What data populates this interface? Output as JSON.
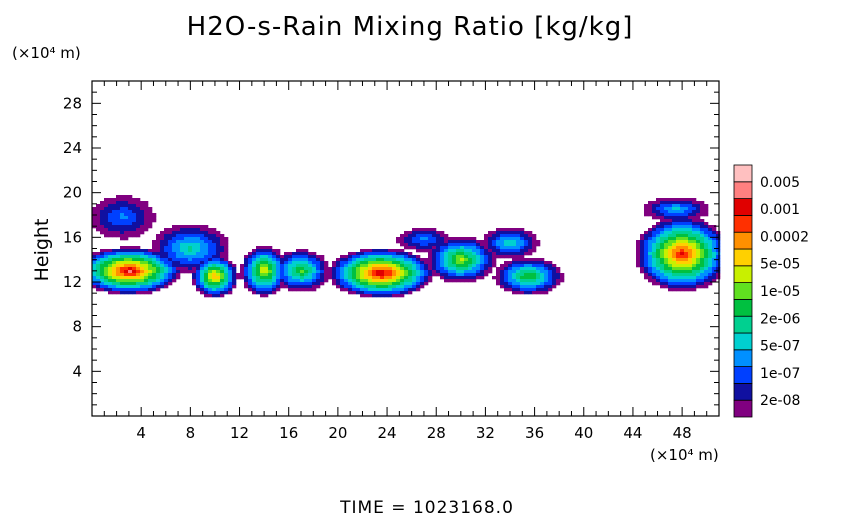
{
  "chart_data": {
    "type": "heatmap",
    "title": "H2O-s-Rain Mixing Ratio [kg/kg]",
    "ylabel": "Height",
    "x_unit_label": "(×10⁴ m)",
    "y_unit_label": "(×10⁴ m)",
    "xlim": [
      0,
      51
    ],
    "ylim": [
      0,
      30
    ],
    "x_ticks": [
      4,
      8,
      12,
      16,
      20,
      24,
      28,
      32,
      36,
      40,
      44,
      48
    ],
    "y_ticks": [
      4,
      8,
      12,
      16,
      20,
      24,
      28
    ],
    "colorbar": {
      "labels": [
        "0.005",
        "0.001",
        "0.0002",
        "5e-05",
        "1e-05",
        "2e-06",
        "5e-07",
        "1e-07",
        "2e-08"
      ],
      "colors": [
        "#800080",
        "#1010a0",
        "#0040ff",
        "#0090ff",
        "#00d0d0",
        "#00d090",
        "#00c040",
        "#60e020",
        "#c8f000",
        "#ffd000",
        "#ff9000",
        "#ff3000",
        "#e00000",
        "#ff8080",
        "#ffc0c0"
      ]
    },
    "field": [
      {
        "x": 2.5,
        "y": 17.8,
        "rx": 3.0,
        "ry": 2.2,
        "peak": 3
      },
      {
        "x": 3.0,
        "y": 13.0,
        "rx": 4.5,
        "ry": 2.2,
        "peak": 13
      },
      {
        "x": 8.0,
        "y": 15.0,
        "rx": 3.5,
        "ry": 2.4,
        "peak": 5
      },
      {
        "x": 10.0,
        "y": 12.5,
        "rx": 2.0,
        "ry": 2.0,
        "peak": 10
      },
      {
        "x": 14.0,
        "y": 13.0,
        "rx": 2.0,
        "ry": 2.4,
        "peak": 9
      },
      {
        "x": 17.0,
        "y": 13.0,
        "rx": 2.5,
        "ry": 2.0,
        "peak": 7
      },
      {
        "x": 23.5,
        "y": 12.8,
        "rx": 4.5,
        "ry": 2.3,
        "peak": 13
      },
      {
        "x": 30.0,
        "y": 14.0,
        "rx": 3.0,
        "ry": 2.2,
        "peak": 8
      },
      {
        "x": 34.0,
        "y": 15.5,
        "rx": 2.5,
        "ry": 1.5,
        "peak": 5
      },
      {
        "x": 35.5,
        "y": 12.5,
        "rx": 3.0,
        "ry": 1.8,
        "peak": 7
      },
      {
        "x": 27.0,
        "y": 15.8,
        "rx": 2.5,
        "ry": 1.2,
        "peak": 3
      },
      {
        "x": 48.0,
        "y": 14.5,
        "rx": 4.0,
        "ry": 3.5,
        "peak": 12
      },
      {
        "x": 47.5,
        "y": 18.5,
        "rx": 3.0,
        "ry": 1.2,
        "peak": 4
      }
    ]
  },
  "footer": {
    "time_label": "TIME  =  1023168.0"
  }
}
